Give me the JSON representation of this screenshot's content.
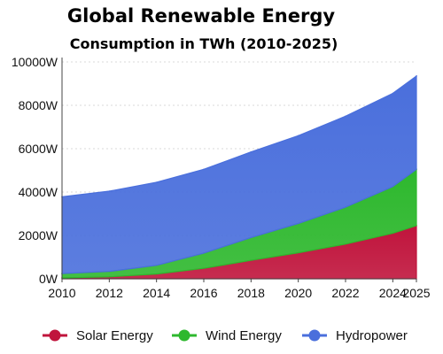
{
  "chart_data": {
    "type": "area",
    "stacked": true,
    "title": "Global Renewable Energy",
    "subtitle": "Consumption in TWh (2010-2025)",
    "xlabel": "",
    "ylabel": "",
    "x": [
      2010,
      2012,
      2014,
      2016,
      2018,
      2020,
      2022,
      2024,
      2025
    ],
    "x_ticks": [
      "2010",
      "2012",
      "2014",
      "2016",
      "2018",
      "2020",
      "2022",
      "2024",
      "2025"
    ],
    "y_ticks": [
      "0W",
      "2000W",
      "4000W",
      "6000W",
      "8000W",
      "10000W"
    ],
    "ylim": [
      0,
      10000
    ],
    "grid": true,
    "legend_position": "bottom",
    "series": [
      {
        "name": "Solar Energy",
        "color": "#c0143c",
        "values": [
          40,
          90,
          220,
          480,
          850,
          1200,
          1600,
          2100,
          2450
        ]
      },
      {
        "name": "Wind Energy",
        "color": "#2eb82e",
        "values": [
          200,
          250,
          400,
          700,
          1050,
          1350,
          1700,
          2150,
          2600
        ]
      },
      {
        "name": "Hydropower",
        "color": "#4a6fdc",
        "values": [
          3540,
          3700,
          3830,
          3870,
          3950,
          4050,
          4200,
          4300,
          4300
        ]
      }
    ]
  }
}
